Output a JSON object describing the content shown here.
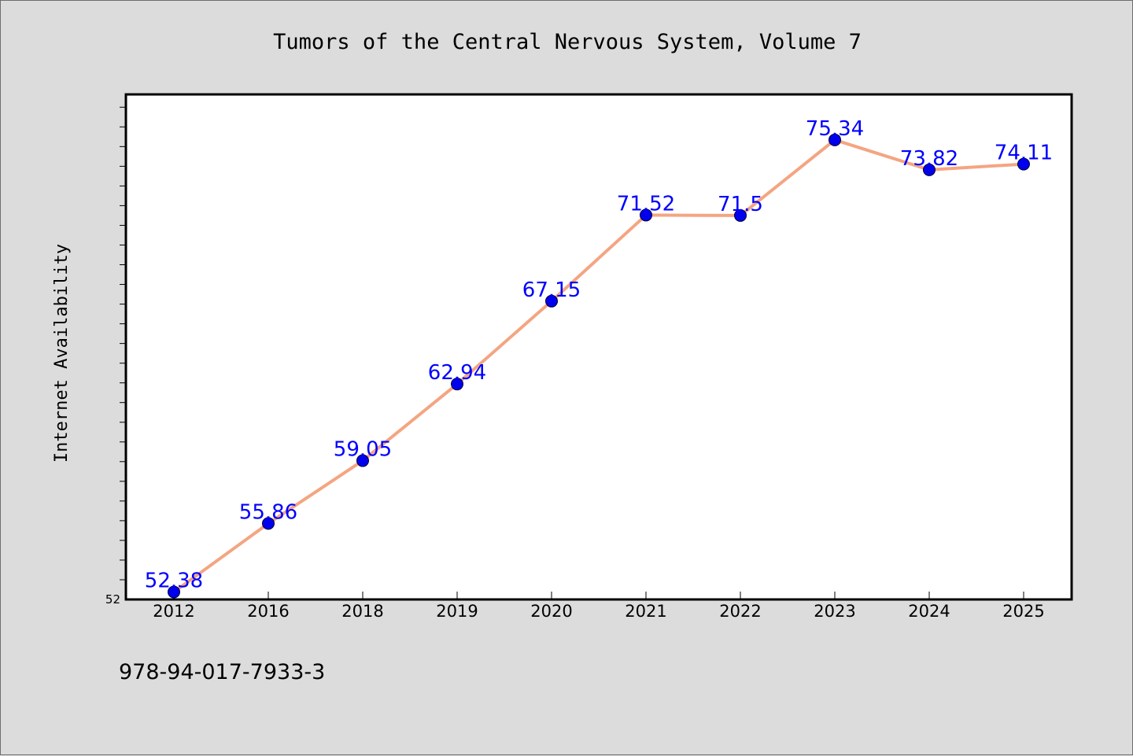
{
  "chart_data": {
    "type": "line",
    "title": "Tumors of the Central Nervous System, Volume 7",
    "ylabel": "Internet Availability",
    "xlabel": "",
    "categories": [
      "2012",
      "2016",
      "2018",
      "2019",
      "2020",
      "2021",
      "2022",
      "2023",
      "2024",
      "2025"
    ],
    "values": [
      52.38,
      55.86,
      59.05,
      62.94,
      67.15,
      71.52,
      71.5,
      75.34,
      73.82,
      74.11
    ],
    "data_labels": [
      "52.38",
      "55.86",
      "59.05",
      "62.94",
      "67.15",
      "71.52",
      "71.5",
      "75.34",
      "73.82",
      "74.11"
    ],
    "ylim": [
      52,
      77.65
    ],
    "ytick_labels": [
      "52"
    ],
    "grid": false,
    "legend": "none",
    "colors": {
      "line": "#f4a582",
      "marker": "#0000ee",
      "label": "#0000ff",
      "background": "#dcdcdc",
      "plot_background": "#ffffff"
    }
  },
  "footnote": "978-94-017-7933-3"
}
